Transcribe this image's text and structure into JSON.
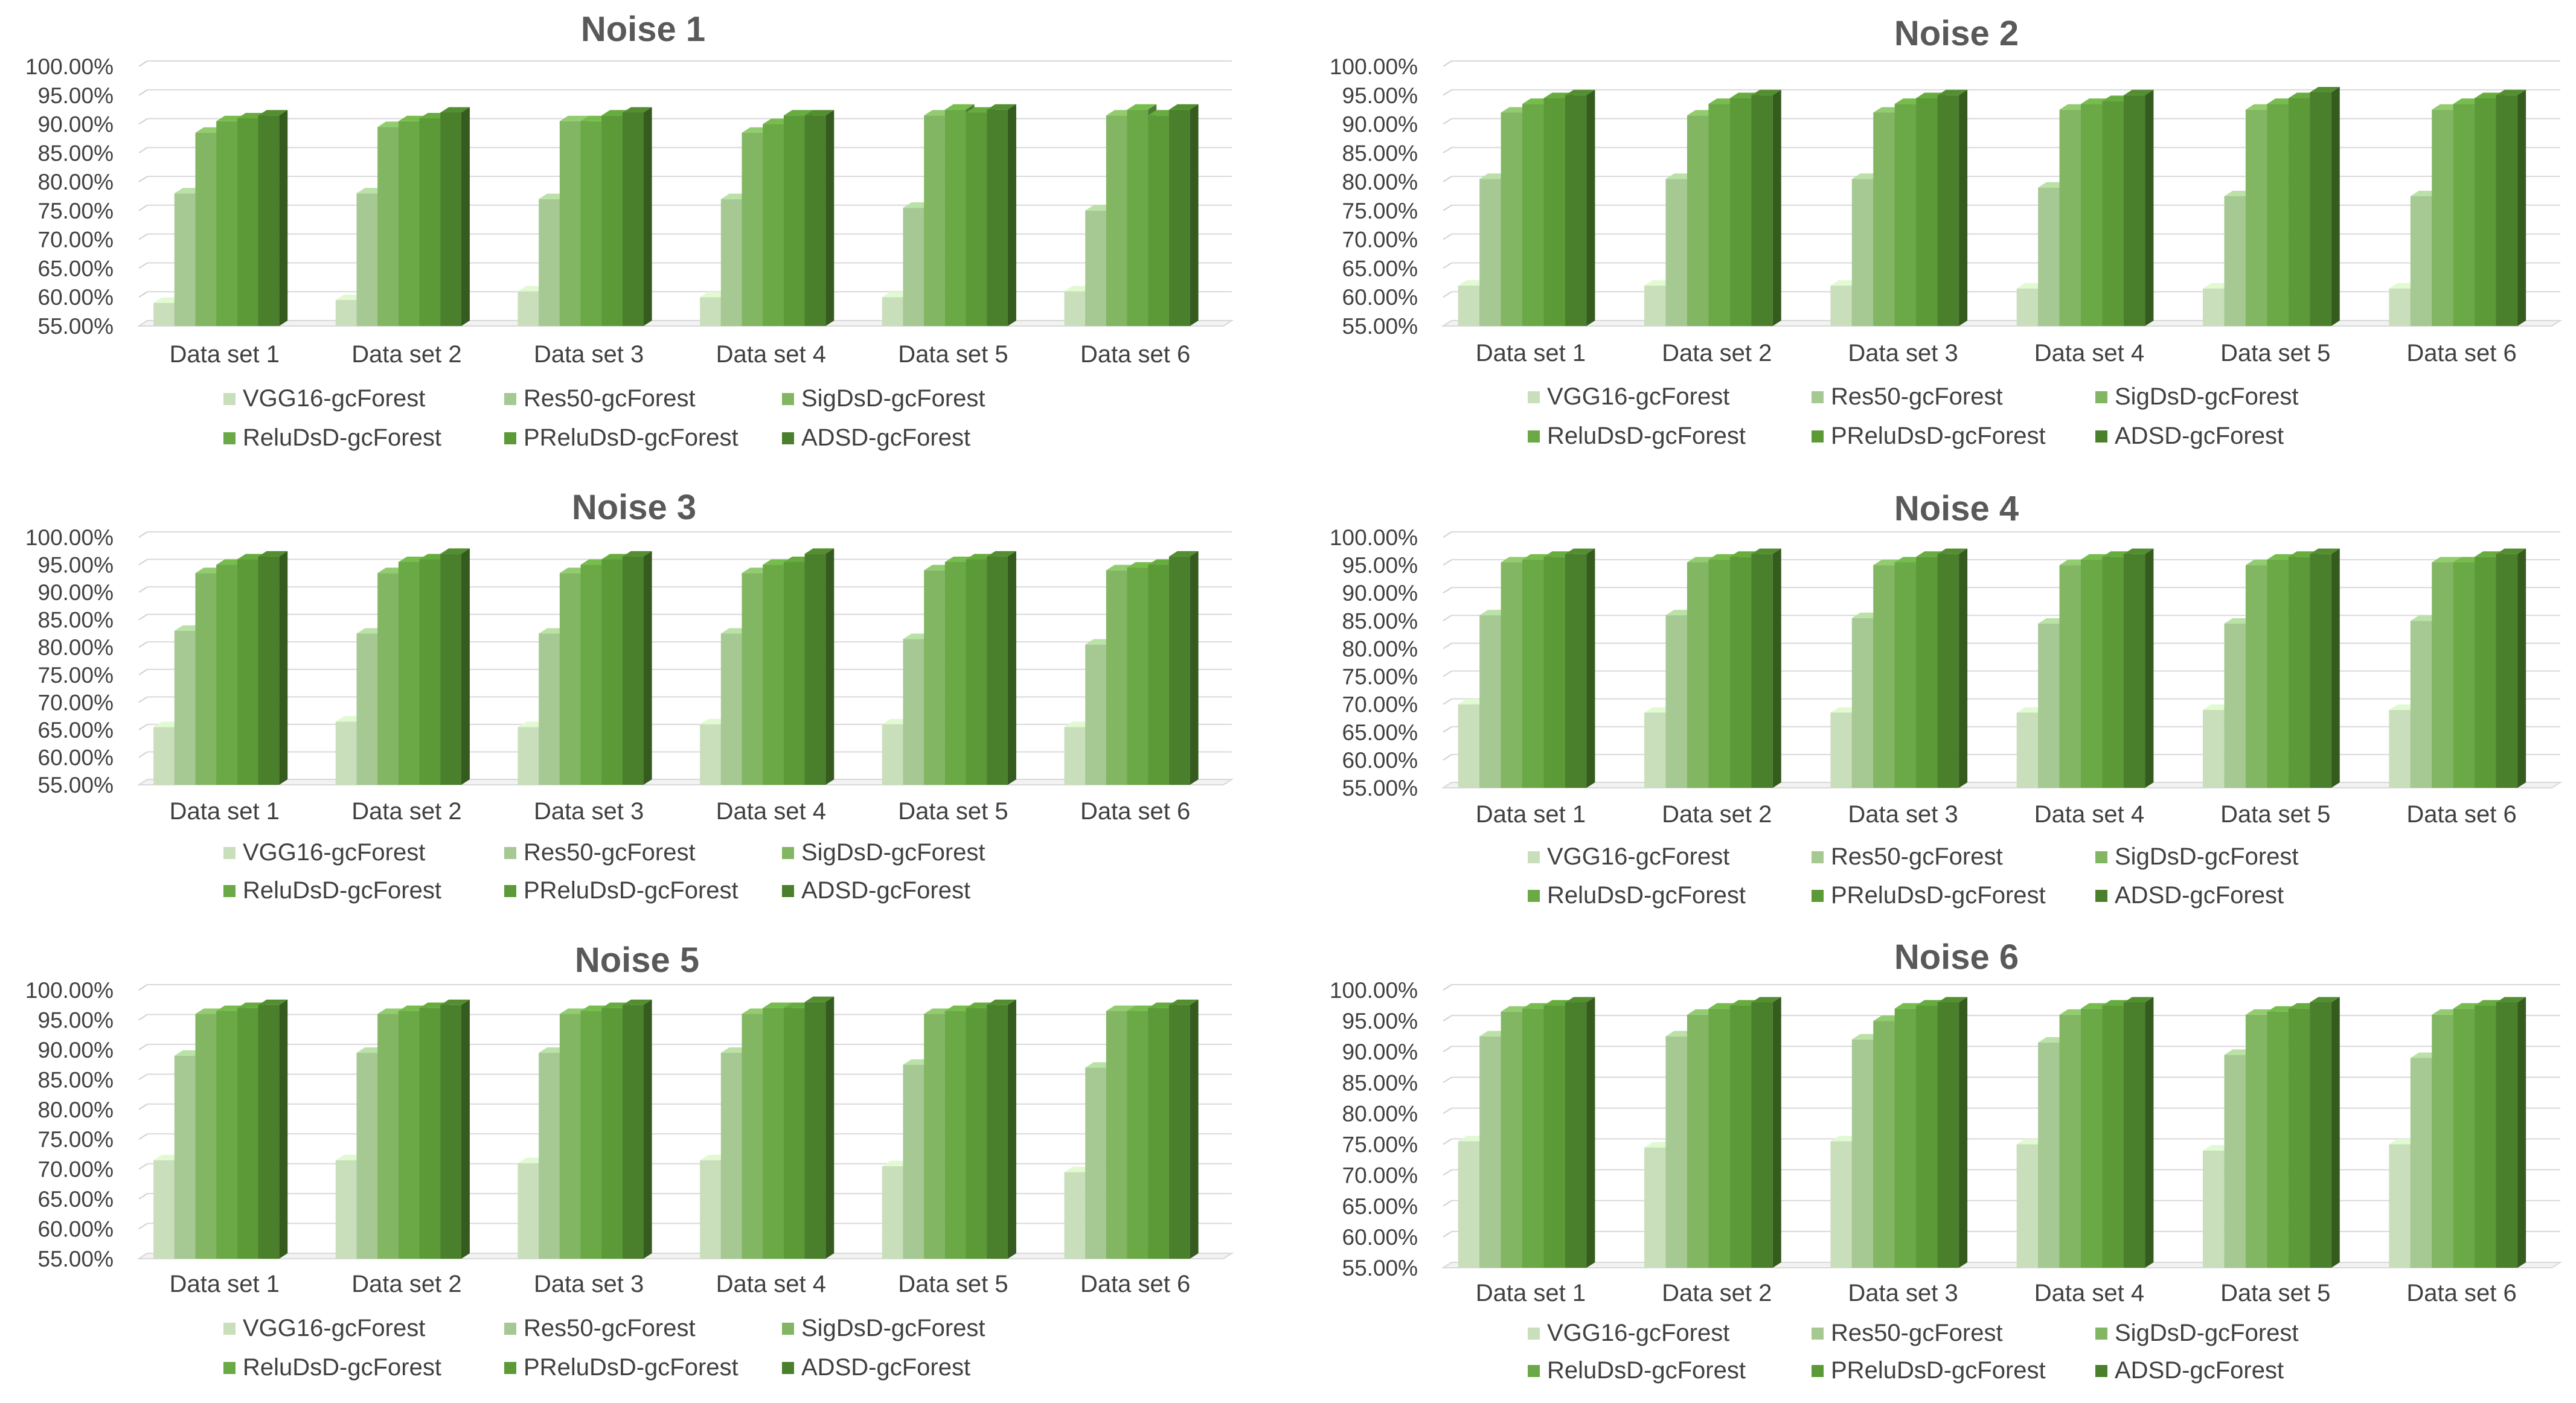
{
  "page": {
    "background": "#ffffff"
  },
  "series_colors": [
    "#c9dfbb",
    "#a6c994",
    "#82b663",
    "#6aa945",
    "#5c9a38",
    "#4a7f2b"
  ],
  "series_names": [
    "VGG16-gcForest",
    "Res50-gcForest",
    "SigDsD-gcForest",
    "ReluDsD-gcForest",
    "PReluDsD-gcForest",
    "ADSD-gcForest"
  ],
  "chart_data": [
    {
      "type": "bar",
      "title": "Noise 1",
      "categories": [
        "Data set 1",
        "Data set 2",
        "Data set 3",
        "Data set 4",
        "Data set 5",
        "Data set 6"
      ],
      "ylim": [
        0.55,
        1.0
      ],
      "yticks": [
        "55.00%",
        "60.00%",
        "65.00%",
        "70.00%",
        "75.00%",
        "80.00%",
        "85.00%",
        "90.00%",
        "95.00%",
        "100.00%"
      ],
      "legend_position": "bottom",
      "series": [
        {
          "name": "VGG16-gcForest",
          "values": [
            0.59,
            0.595,
            0.61,
            0.6,
            0.6,
            0.61
          ]
        },
        {
          "name": "Res50-gcForest",
          "values": [
            0.78,
            0.78,
            0.77,
            0.77,
            0.755,
            0.75
          ]
        },
        {
          "name": "SigDsD-gcForest",
          "values": [
            0.885,
            0.895,
            0.905,
            0.885,
            0.915,
            0.915
          ]
        },
        {
          "name": "ReluDsD-gcForest",
          "values": [
            0.905,
            0.905,
            0.905,
            0.9,
            0.925,
            0.925
          ]
        },
        {
          "name": "PReluDsD-gcForest",
          "values": [
            0.91,
            0.91,
            0.915,
            0.915,
            0.92,
            0.915
          ]
        },
        {
          "name": "ADSD-gcForest",
          "values": [
            0.915,
            0.92,
            0.92,
            0.915,
            0.925,
            0.925
          ]
        }
      ]
    },
    {
      "type": "bar",
      "title": "Noise 2",
      "categories": [
        "Data set 1",
        "Data set 2",
        "Data set 3",
        "Data set 4",
        "Data set 5",
        "Data set 6"
      ],
      "ylim": [
        0.55,
        1.0
      ],
      "yticks": [
        "55.00%",
        "60.00%",
        "65.00%",
        "70.00%",
        "75.00%",
        "80.00%",
        "85.00%",
        "90.00%",
        "95.00%",
        "100.00%"
      ],
      "legend_position": "bottom",
      "series": [
        {
          "name": "VGG16-gcForest",
          "values": [
            0.62,
            0.62,
            0.62,
            0.615,
            0.615,
            0.615
          ]
        },
        {
          "name": "Res50-gcForest",
          "values": [
            0.805,
            0.805,
            0.805,
            0.79,
            0.775,
            0.775
          ]
        },
        {
          "name": "SigDsD-gcForest",
          "values": [
            0.92,
            0.915,
            0.92,
            0.925,
            0.925,
            0.925
          ]
        },
        {
          "name": "ReluDsD-gcForest",
          "values": [
            0.935,
            0.935,
            0.935,
            0.935,
            0.935,
            0.935
          ]
        },
        {
          "name": "PReluDsD-gcForest",
          "values": [
            0.945,
            0.945,
            0.945,
            0.94,
            0.945,
            0.945
          ]
        },
        {
          "name": "ADSD-gcForest",
          "values": [
            0.95,
            0.95,
            0.95,
            0.95,
            0.955,
            0.95
          ]
        }
      ]
    },
    {
      "type": "bar",
      "title": "Noise 3",
      "categories": [
        "Data set 1",
        "Data set 2",
        "Data set 3",
        "Data set 4",
        "Data set 5",
        "Data set 6"
      ],
      "ylim": [
        0.55,
        1.0
      ],
      "yticks": [
        "55.00%",
        "60.00%",
        "65.00%",
        "70.00%",
        "75.00%",
        "80.00%",
        "85.00%",
        "90.00%",
        "95.00%",
        "100.00%"
      ],
      "legend_position": "bottom",
      "series": [
        {
          "name": "VGG16-gcForest",
          "values": [
            0.655,
            0.665,
            0.655,
            0.66,
            0.66,
            0.655
          ]
        },
        {
          "name": "Res50-gcForest",
          "values": [
            0.83,
            0.825,
            0.825,
            0.825,
            0.815,
            0.805
          ]
        },
        {
          "name": "SigDsD-gcForest",
          "values": [
            0.935,
            0.935,
            0.935,
            0.935,
            0.94,
            0.94
          ]
        },
        {
          "name": "ReluDsD-gcForest",
          "values": [
            0.95,
            0.955,
            0.95,
            0.95,
            0.955,
            0.945
          ]
        },
        {
          "name": "PReluDsD-gcForest",
          "values": [
            0.96,
            0.96,
            0.96,
            0.955,
            0.96,
            0.95
          ]
        },
        {
          "name": "ADSD-gcForest",
          "values": [
            0.965,
            0.97,
            0.965,
            0.97,
            0.965,
            0.965
          ]
        }
      ]
    },
    {
      "type": "bar",
      "title": "Noise 4",
      "categories": [
        "Data set 1",
        "Data set 2",
        "Data set 3",
        "Data set 4",
        "Data set 5",
        "Data set 6"
      ],
      "ylim": [
        0.55,
        1.0
      ],
      "yticks": [
        "55.00%",
        "60.00%",
        "65.00%",
        "70.00%",
        "75.00%",
        "80.00%",
        "85.00%",
        "90.00%",
        "95.00%",
        "100.00%"
      ],
      "legend_position": "bottom",
      "series": [
        {
          "name": "VGG16-gcForest",
          "values": [
            0.7,
            0.685,
            0.685,
            0.685,
            0.69,
            0.69
          ]
        },
        {
          "name": "Res50-gcForest",
          "values": [
            0.86,
            0.86,
            0.855,
            0.845,
            0.845,
            0.85
          ]
        },
        {
          "name": "SigDsD-gcForest",
          "values": [
            0.955,
            0.955,
            0.95,
            0.95,
            0.95,
            0.955
          ]
        },
        {
          "name": "ReluDsD-gcForest",
          "values": [
            0.96,
            0.96,
            0.955,
            0.96,
            0.96,
            0.955
          ]
        },
        {
          "name": "PReluDsD-gcForest",
          "values": [
            0.965,
            0.965,
            0.965,
            0.965,
            0.965,
            0.965
          ]
        },
        {
          "name": "ADSD-gcForest",
          "values": [
            0.97,
            0.97,
            0.97,
            0.97,
            0.97,
            0.97
          ]
        }
      ]
    },
    {
      "type": "bar",
      "title": "Noise 5",
      "categories": [
        "Data set 1",
        "Data set 2",
        "Data set 3",
        "Data set 4",
        "Data set 5",
        "Data set 6"
      ],
      "ylim": [
        0.55,
        1.0
      ],
      "yticks": [
        "55.00%",
        "60.00%",
        "65.00%",
        "70.00%",
        "75.00%",
        "80.00%",
        "85.00%",
        "90.00%",
        "95.00%",
        "100.00%"
      ],
      "legend_position": "bottom",
      "series": [
        {
          "name": "VGG16-gcForest",
          "values": [
            0.715,
            0.715,
            0.71,
            0.715,
            0.705,
            0.695
          ]
        },
        {
          "name": "Res50-gcForest",
          "values": [
            0.89,
            0.895,
            0.895,
            0.895,
            0.875,
            0.87
          ]
        },
        {
          "name": "SigDsD-gcForest",
          "values": [
            0.96,
            0.96,
            0.96,
            0.96,
            0.96,
            0.965
          ]
        },
        {
          "name": "ReluDsD-gcForest",
          "values": [
            0.965,
            0.965,
            0.965,
            0.97,
            0.965,
            0.965
          ]
        },
        {
          "name": "PReluDsD-gcForest",
          "values": [
            0.97,
            0.97,
            0.97,
            0.97,
            0.97,
            0.97
          ]
        },
        {
          "name": "ADSD-gcForest",
          "values": [
            0.975,
            0.975,
            0.975,
            0.98,
            0.975,
            0.975
          ]
        }
      ]
    },
    {
      "type": "bar",
      "title": "Noise 6",
      "categories": [
        "Data set 1",
        "Data set 2",
        "Data set 3",
        "Data set 4",
        "Data set 5",
        "Data set 6"
      ],
      "ylim": [
        0.55,
        1.0
      ],
      "yticks": [
        "55.00%",
        "60.00%",
        "65.00%",
        "70.00%",
        "75.00%",
        "80.00%",
        "85.00%",
        "90.00%",
        "95.00%",
        "100.00%"
      ],
      "legend_position": "bottom",
      "series": [
        {
          "name": "VGG16-gcForest",
          "values": [
            0.755,
            0.745,
            0.755,
            0.75,
            0.74,
            0.75
          ]
        },
        {
          "name": "Res50-gcForest",
          "values": [
            0.925,
            0.925,
            0.92,
            0.915,
            0.895,
            0.89
          ]
        },
        {
          "name": "SigDsD-gcForest",
          "values": [
            0.965,
            0.96,
            0.95,
            0.96,
            0.96,
            0.96
          ]
        },
        {
          "name": "ReluDsD-gcForest",
          "values": [
            0.97,
            0.97,
            0.97,
            0.97,
            0.965,
            0.97
          ]
        },
        {
          "name": "PReluDsD-gcForest",
          "values": [
            0.975,
            0.975,
            0.975,
            0.975,
            0.97,
            0.975
          ]
        },
        {
          "name": "ADSD-gcForest",
          "values": [
            0.98,
            0.98,
            0.98,
            0.98,
            0.98,
            0.98
          ]
        }
      ]
    }
  ]
}
